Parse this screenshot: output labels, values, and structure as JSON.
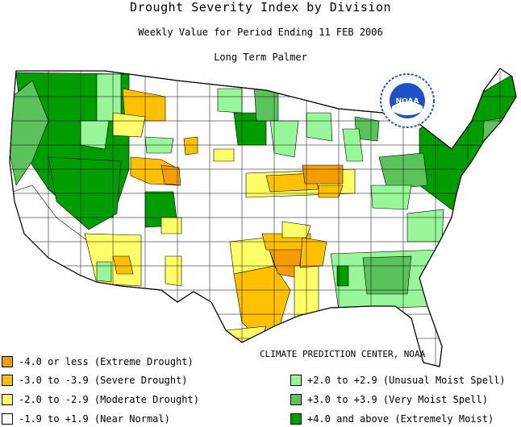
{
  "header": {
    "title": "Drought Severity Index by Division",
    "subtitle": "Weekly Value for Period Ending 11 FEB 2006",
    "index_name": "Long Term Palmer"
  },
  "logo": {
    "text": "NOAA",
    "icon": "noaa-seal-icon"
  },
  "credit": "CLIMATE PREDICTION CENTER, NOAA",
  "colors": {
    "extreme_drought": "#f29d00",
    "severe_drought": "#ffc000",
    "moderate_drought": "#ffff66",
    "near_normal": "#ffffff",
    "unusual_moist": "#99f599",
    "very_moist": "#5cc25c",
    "extremely_moist": "#009d00",
    "borders": "#000000",
    "logo_blue": "#1e50c8"
  },
  "legend": [
    {
      "label": "-4.0 or less (Extreme Drought)",
      "color": "#f29d00"
    },
    {
      "label": "-3.0 to -3.9 (Severe Drought)",
      "color": "#ffc000"
    },
    {
      "label": "-2.0 to -2.9 (Moderate Drought)",
      "color": "#ffff66"
    },
    {
      "label": "-1.9 to +1.9 (Near Normal)",
      "color": "#ffffff"
    },
    {
      "label": "+2.0 to +2.9 (Unusual Moist Spell)",
      "color": "#99f599"
    },
    {
      "label": "+3.0 to +3.9 (Very Moist Spell)",
      "color": "#5cc25c"
    },
    {
      "label": "+4.0 and above (Extremely Moist)",
      "color": "#009d00"
    }
  ]
}
